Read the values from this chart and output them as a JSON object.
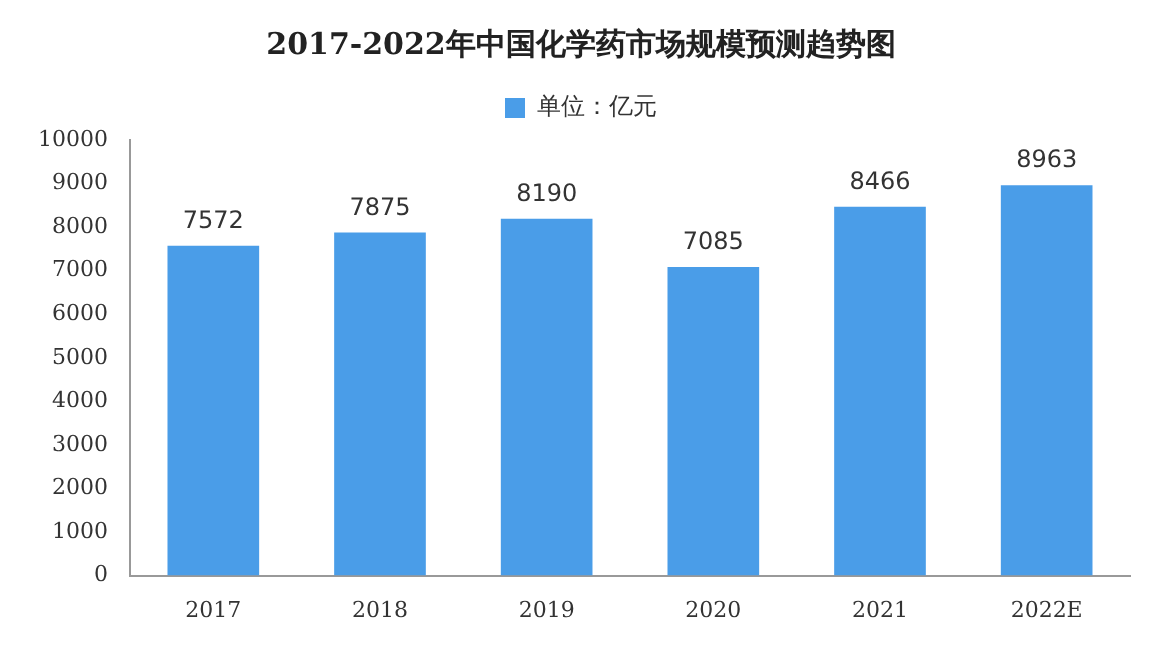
{
  "chart_data": {
    "type": "bar",
    "title": "2017-2022年中国化学药市场规模预测趋势图",
    "categories": [
      "2017",
      "2018",
      "2019",
      "2020",
      "2021",
      "2022E"
    ],
    "series": [
      {
        "name": "单位：亿元",
        "color": "#4a9de8",
        "values": [
          7572,
          7875,
          8190,
          7085,
          8466,
          8963
        ]
      }
    ],
    "ylim": [
      0,
      10000
    ],
    "yticks": [
      0,
      1000,
      2000,
      3000,
      4000,
      5000,
      6000,
      7000,
      8000,
      9000,
      10000
    ],
    "grid": false,
    "legend": "top",
    "data_labels": true
  }
}
